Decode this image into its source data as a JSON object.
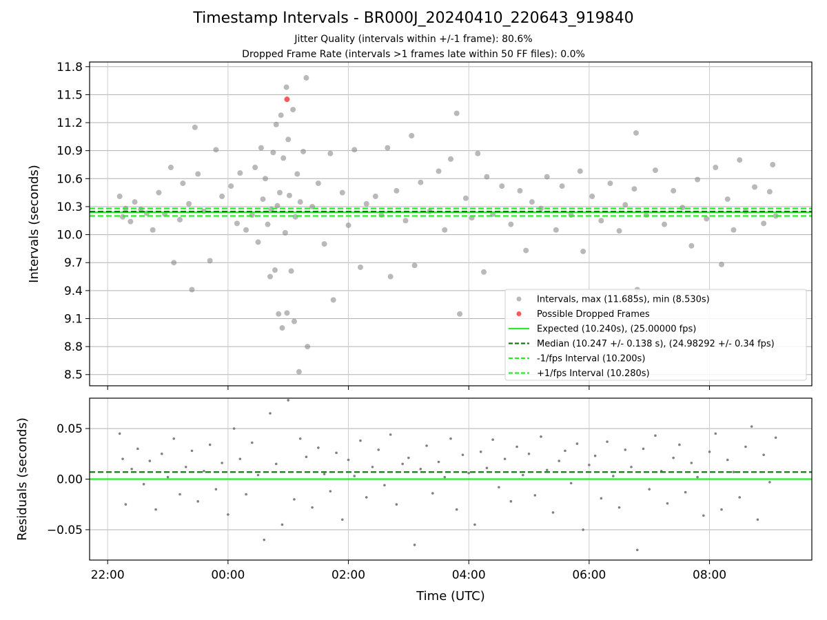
{
  "title": "Timestamp Intervals - BR000J_20240410_220643_919840",
  "subtitle_1": "Jitter Quality (intervals within +/-1 frame): 80.6%",
  "subtitle_2": "Dropped Frame Rate (intervals >1 frames late within 50 FF files): 0.0%",
  "colors": {
    "points": "#808080",
    "dropped": "#ff3b3b",
    "expected": "#22ee22",
    "median": "#137b13",
    "fps_bounds": "#22ee22",
    "grid": "#b0b0b0"
  },
  "chart_data": [
    {
      "type": "scatter",
      "panel": "intervals",
      "ylabel": "Intervals (seconds)",
      "xlabel": "",
      "x_unit": "hours since 00:00 UTC (negative = previous day)",
      "xlim": [
        -2.3,
        9.7
      ],
      "ylim": [
        8.38,
        11.85
      ],
      "yticks": [
        8.5,
        8.8,
        9.1,
        9.4,
        9.7,
        10.0,
        10.3,
        10.6,
        10.9,
        11.2,
        11.5,
        11.8
      ],
      "ytick_labels": [
        "8.5",
        "8.8",
        "9.1",
        "9.4",
        "9.7",
        "10.0",
        "10.3",
        "10.6",
        "10.9",
        "11.2",
        "11.5",
        "11.8"
      ],
      "xticks": [
        -2,
        0,
        2,
        4,
        6,
        8
      ],
      "xtick_labels": [
        "",
        "",
        "",
        "",
        "",
        ""
      ],
      "grid": true,
      "legend_position": "bottom-right",
      "horizontal_lines": [
        {
          "name": "Expected (10.240s), (25.00000 fps)",
          "y": 10.24,
          "style": "solid",
          "color": "#22ee22"
        },
        {
          "name": "Median (10.247 +/- 0.138 s), (24.98292 +/- 0.34 fps)",
          "y": 10.247,
          "style": "dashed",
          "color": "#137b13"
        },
        {
          "name": "-1/fps Interval (10.200s)",
          "y": 10.2,
          "style": "dashed",
          "color": "#22ee22"
        },
        {
          "name": "+1/fps Interval (10.280s)",
          "y": 10.28,
          "style": "dashed",
          "color": "#22ee22"
        }
      ],
      "series": [
        {
          "name": "Intervals, max (11.685s), min (8.530s)",
          "color": "#808080",
          "points": [
            [
              -1.8,
              10.41
            ],
            [
              -1.75,
              10.19
            ],
            [
              -1.7,
              10.28
            ],
            [
              -1.62,
              10.14
            ],
            [
              -1.55,
              10.35
            ],
            [
              -1.45,
              10.27
            ],
            [
              -1.35,
              10.23
            ],
            [
              -1.25,
              10.05
            ],
            [
              -1.15,
              10.45
            ],
            [
              -1.05,
              10.22
            ],
            [
              -0.95,
              10.72
            ],
            [
              -0.9,
              9.7
            ],
            [
              -0.8,
              10.16
            ],
            [
              -0.75,
              10.55
            ],
            [
              -0.65,
              10.33
            ],
            [
              -0.6,
              9.41
            ],
            [
              -0.55,
              11.15
            ],
            [
              -0.5,
              10.65
            ],
            [
              -0.4,
              10.25
            ],
            [
              -0.3,
              9.72
            ],
            [
              -0.2,
              10.91
            ],
            [
              -0.1,
              10.41
            ],
            [
              0.05,
              10.52
            ],
            [
              0.15,
              10.12
            ],
            [
              0.2,
              10.66
            ],
            [
              0.3,
              10.05
            ],
            [
              0.4,
              10.21
            ],
            [
              0.45,
              10.72
            ],
            [
              0.5,
              9.92
            ],
            [
              0.55,
              10.93
            ],
            [
              0.58,
              10.38
            ],
            [
              0.62,
              10.6
            ],
            [
              0.66,
              10.11
            ],
            [
              0.7,
              9.55
            ],
            [
              0.72,
              10.27
            ],
            [
              0.75,
              10.88
            ],
            [
              0.78,
              9.62
            ],
            [
              0.8,
              11.18
            ],
            [
              0.82,
              10.31
            ],
            [
              0.84,
              9.15
            ],
            [
              0.86,
              10.45
            ],
            [
              0.88,
              11.28
            ],
            [
              0.9,
              9.0
            ],
            [
              0.92,
              10.82
            ],
            [
              0.95,
              10.02
            ],
            [
              0.97,
              11.58
            ],
            [
              0.98,
              9.16
            ],
            [
              1.0,
              11.02
            ],
            [
              1.02,
              10.42
            ],
            [
              1.05,
              9.61
            ],
            [
              1.08,
              11.34
            ],
            [
              1.1,
              9.07
            ],
            [
              1.12,
              10.19
            ],
            [
              1.15,
              10.65
            ],
            [
              1.18,
              8.53
            ],
            [
              1.2,
              10.35
            ],
            [
              1.25,
              10.89
            ],
            [
              1.3,
              11.68
            ],
            [
              1.32,
              8.8
            ],
            [
              1.4,
              10.3
            ],
            [
              1.5,
              10.55
            ],
            [
              1.6,
              9.9
            ],
            [
              1.7,
              10.87
            ],
            [
              1.75,
              9.3
            ],
            [
              1.9,
              10.45
            ],
            [
              2.0,
              10.1
            ],
            [
              2.1,
              10.91
            ],
            [
              2.2,
              9.65
            ],
            [
              2.3,
              10.33
            ],
            [
              2.45,
              10.41
            ],
            [
              2.55,
              10.21
            ],
            [
              2.65,
              10.93
            ],
            [
              2.7,
              9.55
            ],
            [
              2.8,
              10.47
            ],
            [
              2.95,
              10.15
            ],
            [
              3.05,
              11.06
            ],
            [
              3.1,
              9.67
            ],
            [
              3.2,
              10.56
            ],
            [
              3.35,
              10.25
            ],
            [
              3.5,
              10.68
            ],
            [
              3.6,
              10.05
            ],
            [
              3.7,
              10.81
            ],
            [
              3.8,
              11.3
            ],
            [
              3.85,
              9.15
            ],
            [
              3.95,
              10.39
            ],
            [
              4.05,
              10.18
            ],
            [
              4.15,
              10.87
            ],
            [
              4.25,
              9.6
            ],
            [
              4.3,
              10.62
            ],
            [
              4.4,
              10.22
            ],
            [
              4.55,
              10.52
            ],
            [
              4.7,
              10.11
            ],
            [
              4.85,
              10.47
            ],
            [
              4.95,
              9.83
            ],
            [
              5.05,
              10.35
            ],
            [
              5.2,
              10.28
            ],
            [
              5.3,
              10.62
            ],
            [
              5.45,
              10.05
            ],
            [
              5.55,
              10.52
            ],
            [
              5.7,
              10.21
            ],
            [
              5.85,
              10.68
            ],
            [
              5.9,
              9.82
            ],
            [
              6.05,
              10.41
            ],
            [
              6.2,
              10.15
            ],
            [
              6.35,
              10.55
            ],
            [
              6.5,
              10.04
            ],
            [
              6.6,
              10.32
            ],
            [
              6.75,
              10.49
            ],
            [
              6.78,
              11.09
            ],
            [
              6.8,
              9.41
            ],
            [
              6.95,
              10.21
            ],
            [
              7.1,
              10.69
            ],
            [
              7.25,
              10.11
            ],
            [
              7.4,
              10.47
            ],
            [
              7.55,
              10.29
            ],
            [
              7.7,
              9.88
            ],
            [
              7.8,
              10.59
            ],
            [
              7.95,
              10.17
            ],
            [
              8.1,
              10.72
            ],
            [
              8.2,
              9.68
            ],
            [
              8.3,
              10.38
            ],
            [
              8.4,
              10.05
            ],
            [
              8.5,
              10.8
            ],
            [
              8.6,
              10.25
            ],
            [
              8.75,
              10.51
            ],
            [
              8.9,
              10.12
            ],
            [
              9.0,
              10.46
            ],
            [
              9.05,
              10.75
            ],
            [
              9.1,
              10.2
            ]
          ]
        },
        {
          "name": "Possible Dropped Frames",
          "color": "#ff3b3b",
          "points": [
            [
              0.98,
              11.45
            ]
          ]
        }
      ]
    },
    {
      "type": "scatter",
      "panel": "residuals",
      "ylabel": "Residuals (seconds)",
      "xlabel": "Time (UTC)",
      "x_unit": "hours since 00:00 UTC (negative = previous day)",
      "xlim": [
        -2.3,
        9.7
      ],
      "ylim": [
        -0.08,
        0.08
      ],
      "yticks": [
        -0.05,
        0.0,
        0.05
      ],
      "ytick_labels": [
        "−0.05",
        "0.00",
        "0.05"
      ],
      "xticks": [
        -2,
        0,
        2,
        4,
        6,
        8
      ],
      "xtick_labels": [
        "22:00",
        "00:00",
        "02:00",
        "04:00",
        "06:00",
        "08:00"
      ],
      "grid": true,
      "horizontal_lines": [
        {
          "name": "zero",
          "y": 0.0,
          "style": "solid",
          "color": "#22ee22"
        },
        {
          "name": "median",
          "y": 0.007,
          "style": "dashed",
          "color": "#137b13"
        }
      ],
      "series": [
        {
          "name": "",
          "color": "#808080",
          "points": [
            [
              -1.8,
              0.045
            ],
            [
              -1.75,
              0.02
            ],
            [
              -1.7,
              -0.025
            ],
            [
              -1.6,
              0.01
            ],
            [
              -1.5,
              0.03
            ],
            [
              -1.4,
              -0.005
            ],
            [
              -1.3,
              0.018
            ],
            [
              -1.2,
              -0.03
            ],
            [
              -1.1,
              0.025
            ],
            [
              -1.0,
              0.002
            ],
            [
              -0.9,
              0.04
            ],
            [
              -0.8,
              -0.015
            ],
            [
              -0.7,
              0.012
            ],
            [
              -0.6,
              0.028
            ],
            [
              -0.5,
              -0.022
            ],
            [
              -0.4,
              0.008
            ],
            [
              -0.3,
              0.034
            ],
            [
              -0.2,
              -0.01
            ],
            [
              -0.1,
              0.016
            ],
            [
              0.0,
              -0.035
            ],
            [
              0.1,
              0.05
            ],
            [
              0.2,
              0.02
            ],
            [
              0.3,
              -0.015
            ],
            [
              0.4,
              0.036
            ],
            [
              0.5,
              0.004
            ],
            [
              0.6,
              -0.06
            ],
            [
              0.7,
              0.065
            ],
            [
              0.8,
              0.015
            ],
            [
              0.9,
              -0.045
            ],
            [
              1.0,
              0.078
            ],
            [
              1.1,
              -0.02
            ],
            [
              1.2,
              0.04
            ],
            [
              1.3,
              0.022
            ],
            [
              1.4,
              -0.028
            ],
            [
              1.5,
              0.031
            ],
            [
              1.6,
              0.005
            ],
            [
              1.7,
              -0.012
            ],
            [
              1.8,
              0.026
            ],
            [
              1.9,
              -0.04
            ],
            [
              2.0,
              0.019
            ],
            [
              2.1,
              0.003
            ],
            [
              2.2,
              0.038
            ],
            [
              2.3,
              -0.018
            ],
            [
              2.4,
              0.012
            ],
            [
              2.5,
              0.029
            ],
            [
              2.6,
              -0.006
            ],
            [
              2.7,
              0.044
            ],
            [
              2.8,
              -0.025
            ],
            [
              2.9,
              0.015
            ],
            [
              3.0,
              0.021
            ],
            [
              3.1,
              -0.065
            ],
            [
              3.2,
              0.01
            ],
            [
              3.3,
              0.033
            ],
            [
              3.4,
              -0.014
            ],
            [
              3.5,
              0.017
            ],
            [
              3.6,
              0.002
            ],
            [
              3.7,
              0.04
            ],
            [
              3.8,
              -0.03
            ],
            [
              3.9,
              0.024
            ],
            [
              4.0,
              0.006
            ],
            [
              4.1,
              -0.045
            ],
            [
              4.2,
              0.027
            ],
            [
              4.3,
              0.011
            ],
            [
              4.4,
              0.039
            ],
            [
              4.5,
              -0.008
            ],
            [
              4.6,
              0.02
            ],
            [
              4.7,
              -0.022
            ],
            [
              4.8,
              0.032
            ],
            [
              4.9,
              0.004
            ],
            [
              5.0,
              0.025
            ],
            [
              5.1,
              -0.016
            ],
            [
              5.2,
              0.042
            ],
            [
              5.3,
              0.009
            ],
            [
              5.4,
              -0.033
            ],
            [
              5.5,
              0.018
            ],
            [
              5.6,
              0.028
            ],
            [
              5.7,
              -0.004
            ],
            [
              5.8,
              0.035
            ],
            [
              5.9,
              -0.05
            ],
            [
              6.0,
              0.014
            ],
            [
              6.1,
              0.023
            ],
            [
              6.2,
              -0.019
            ],
            [
              6.3,
              0.037
            ],
            [
              6.4,
              0.003
            ],
            [
              6.5,
              -0.028
            ],
            [
              6.6,
              0.029
            ],
            [
              6.7,
              0.012
            ],
            [
              6.8,
              -0.07
            ],
            [
              6.9,
              0.03
            ],
            [
              7.0,
              -0.01
            ],
            [
              7.1,
              0.043
            ],
            [
              7.2,
              0.008
            ],
            [
              7.3,
              -0.024
            ],
            [
              7.4,
              0.021
            ],
            [
              7.5,
              0.034
            ],
            [
              7.6,
              -0.013
            ],
            [
              7.7,
              0.016
            ],
            [
              7.8,
              0.002
            ],
            [
              7.9,
              -0.036
            ],
            [
              8.0,
              0.027
            ],
            [
              8.1,
              0.045
            ],
            [
              8.2,
              -0.03
            ],
            [
              8.3,
              0.019
            ],
            [
              8.4,
              0.007
            ],
            [
              8.5,
              -0.018
            ],
            [
              8.6,
              0.032
            ],
            [
              8.7,
              0.052
            ],
            [
              8.8,
              -0.04
            ],
            [
              8.9,
              0.024
            ],
            [
              9.0,
              -0.003
            ],
            [
              9.1,
              0.041
            ]
          ]
        }
      ]
    }
  ]
}
